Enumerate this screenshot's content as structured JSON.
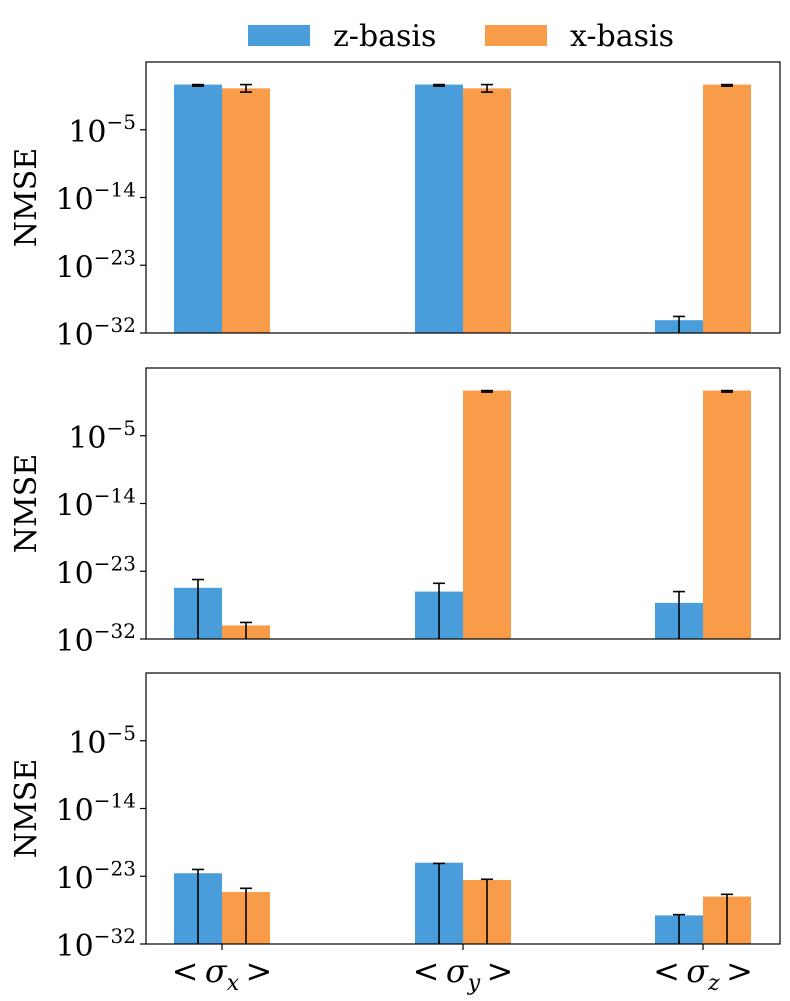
{
  "chart_data": {
    "type": "bar",
    "scale": "log",
    "categories": [
      "< σx >",
      "< σy >",
      "< σz >"
    ],
    "category_tex": [
      {
        "prefix": "< σ",
        "sub": "x",
        "suffix": " >"
      },
      {
        "prefix": "< σ",
        "sub": "y",
        "suffix": " >"
      },
      {
        "prefix": "< σ",
        "sub": "z",
        "suffix": " >"
      }
    ],
    "legend": {
      "position": "top-center",
      "entries": [
        "z-basis",
        "x-basis"
      ]
    },
    "colors": {
      "z-basis": "#4a9ddb",
      "x-basis": "#f89c4a",
      "errorbar": "#000000",
      "frame": "#000000"
    },
    "panels": [
      {
        "ylabel": "NMSE",
        "ylim_exp": [
          -32,
          4
        ],
        "yticks": [
          {
            "base": "10",
            "exp": "−5",
            "value_exp": -5
          },
          {
            "base": "10",
            "exp": "−14",
            "value_exp": -14
          },
          {
            "base": "10",
            "exp": "−23",
            "value_exp": -23
          },
          {
            "base": "10",
            "exp": "−32",
            "value_exp": -32
          }
        ],
        "series": [
          {
            "name": "z-basis",
            "values_exp": [
              1,
              1,
              -30.3
            ],
            "err_lo_exp": [
              0.8,
              0.8,
              -32
            ],
            "err_hi_exp": [
              1,
              1,
              -29.8
            ]
          },
          {
            "name": "x-basis",
            "values_exp": [
              0.5,
              0.5,
              1
            ],
            "err_lo_exp": [
              0,
              0,
              0.8
            ],
            "err_hi_exp": [
              1,
              1,
              1
            ]
          }
        ]
      },
      {
        "ylabel": "NMSE",
        "ylim_exp": [
          -32,
          4
        ],
        "yticks": [
          {
            "base": "10",
            "exp": "−5",
            "value_exp": -5
          },
          {
            "base": "10",
            "exp": "−14",
            "value_exp": -14
          },
          {
            "base": "10",
            "exp": "−23",
            "value_exp": -23
          },
          {
            "base": "10",
            "exp": "−32",
            "value_exp": -32
          }
        ],
        "series": [
          {
            "name": "z-basis",
            "values_exp": [
              -25.2,
              -25.7,
              -27.2
            ],
            "err_lo_exp": [
              -32,
              -32,
              -32
            ],
            "err_hi_exp": [
              -24.1,
              -24.6,
              -25.7
            ]
          },
          {
            "name": "x-basis",
            "values_exp": [
              -30.2,
              1,
              1
            ],
            "err_lo_exp": [
              -32,
              0.8,
              0.8
            ],
            "err_hi_exp": [
              -29.8,
              1,
              1
            ]
          }
        ]
      },
      {
        "ylabel": "NMSE",
        "ylim_exp": [
          -32,
          4
        ],
        "yticks": [
          {
            "base": "10",
            "exp": "−5",
            "value_exp": -5
          },
          {
            "base": "10",
            "exp": "−14",
            "value_exp": -14
          },
          {
            "base": "10",
            "exp": "−23",
            "value_exp": -23
          },
          {
            "base": "10",
            "exp": "−32",
            "value_exp": -32
          }
        ],
        "series": [
          {
            "name": "z-basis",
            "values_exp": [
              -22.6,
              -21.2,
              -28.2
            ],
            "err_lo_exp": [
              -32,
              -32,
              -32
            ],
            "err_hi_exp": [
              -22.1,
              -21.3,
              -28.1
            ]
          },
          {
            "name": "x-basis",
            "values_exp": [
              -25.1,
              -23.5,
              -25.7
            ],
            "err_lo_exp": [
              -32,
              -32,
              -32
            ],
            "err_hi_exp": [
              -24.6,
              -23.4,
              -25.4
            ]
          }
        ]
      }
    ]
  }
}
